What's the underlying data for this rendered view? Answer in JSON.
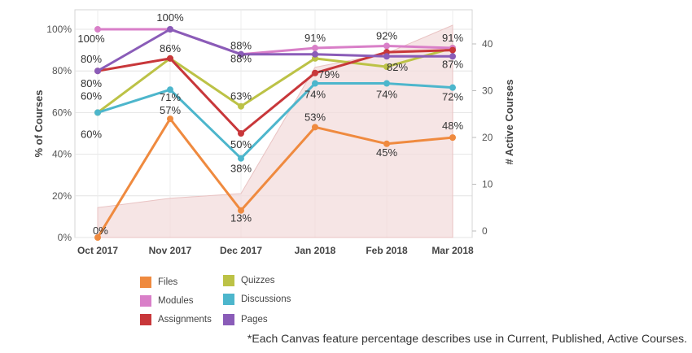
{
  "chart_data": {
    "type": "line",
    "categories": [
      "Oct 2017",
      "Nov 2017",
      "Dec 2017",
      "Jan 2018",
      "Feb 2018",
      "Mar 2018"
    ],
    "ylabel": "% of Courses",
    "y2label": "# Active Courses",
    "ylim": [
      0,
      100
    ],
    "y2lim": [
      0,
      45
    ],
    "yticks": [
      "0%",
      "20%",
      "40%",
      "60%",
      "80%",
      "100%"
    ],
    "y2ticks": [
      "0",
      "10",
      "20",
      "30",
      "40"
    ],
    "area": {
      "values": [
        5,
        7,
        8,
        35,
        38,
        44
      ],
      "color": "#f3dcdc"
    },
    "series": [
      {
        "name": "Files",
        "color": "#ef8a3f",
        "values": [
          0,
          57,
          13,
          53,
          45,
          48
        ],
        "labels": [
          "0%",
          "57%",
          "13%",
          "53%",
          "45%",
          "48%"
        ]
      },
      {
        "name": "Quizzes",
        "color": "#bcc246",
        "values": [
          60,
          86,
          63,
          86,
          82,
          91
        ],
        "labels": [
          "60%",
          "",
          "63%",
          "",
          "82%",
          ""
        ]
      },
      {
        "name": "Modules",
        "color": "#d97fc8",
        "values": [
          100,
          100,
          88,
          91,
          92,
          91
        ],
        "labels": [
          "100%",
          "100%",
          "88%",
          "91%",
          "92%",
          "91%"
        ]
      },
      {
        "name": "Discussions",
        "color": "#4db6cc",
        "values": [
          60,
          71,
          38,
          74,
          74,
          72
        ],
        "labels": [
          "60%",
          "71%",
          "38%",
          "74%",
          "74%",
          "72%"
        ]
      },
      {
        "name": "Assignments",
        "color": "#c8373a",
        "values": [
          80,
          86,
          50,
          79,
          89,
          90
        ],
        "labels": [
          "80%",
          "86%",
          "50%",
          "79%",
          "",
          ""
        ]
      },
      {
        "name": "Pages",
        "color": "#8a5cb8",
        "values": [
          80,
          100,
          88,
          88,
          87,
          87
        ],
        "labels": [
          "80%",
          "",
          "88%",
          "",
          "",
          "87%"
        ]
      }
    ],
    "footnote": "*Each Canvas feature percentage describes use in Current, Published, Active Courses."
  }
}
